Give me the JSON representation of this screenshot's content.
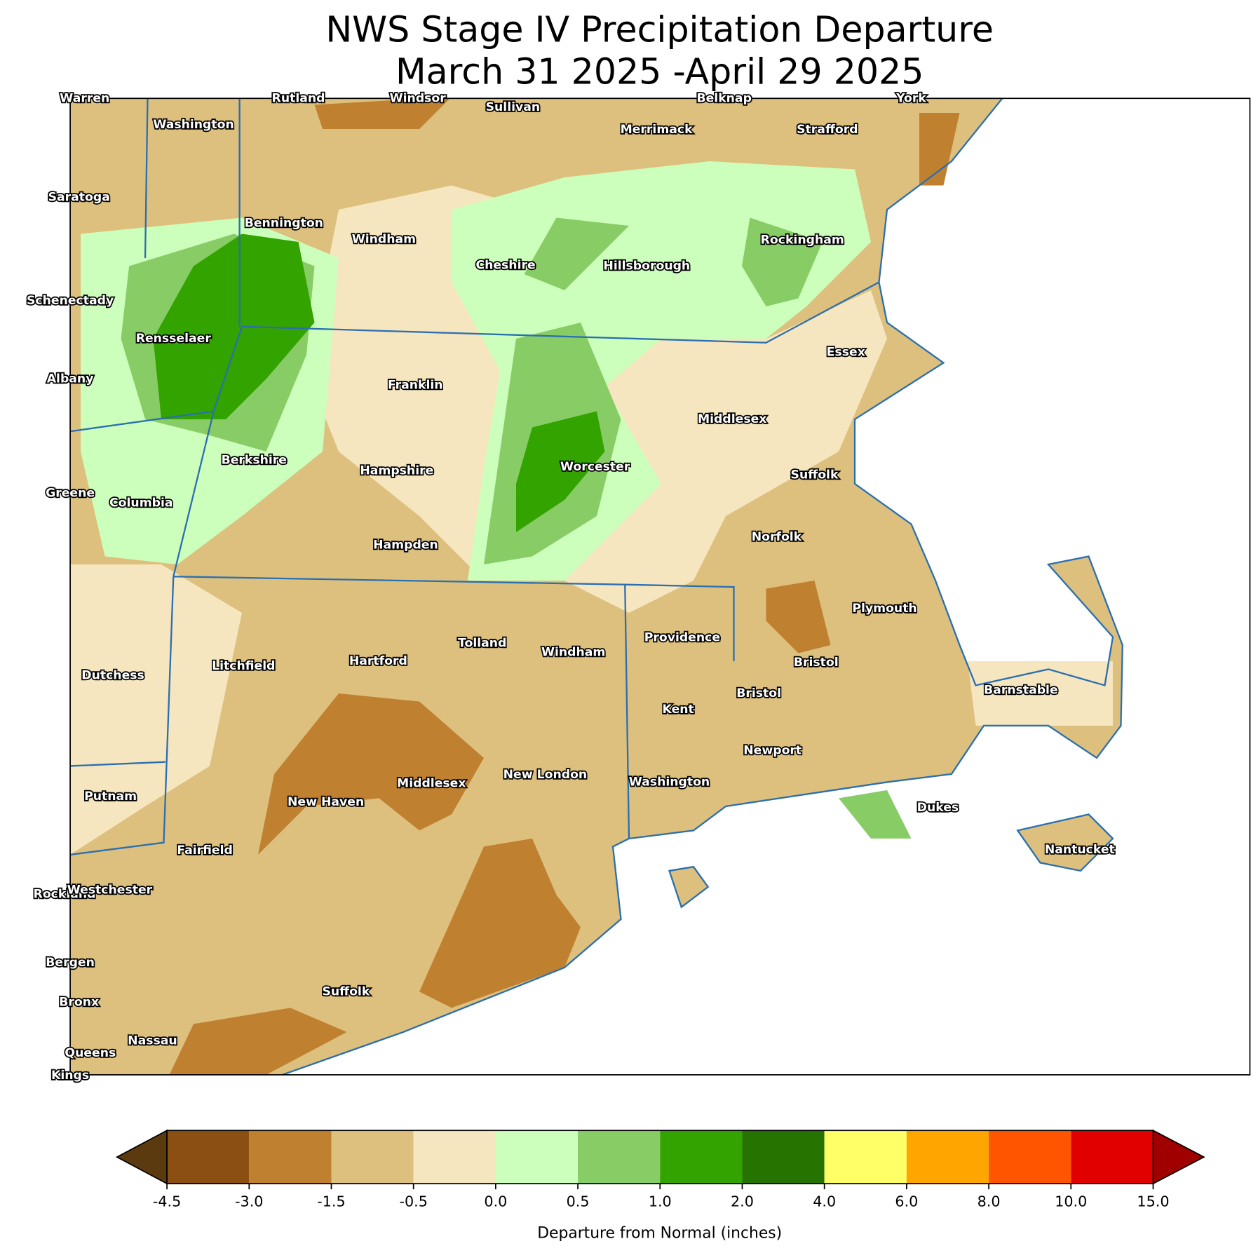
{
  "title": [
    "NWS Stage IV Precipitation Departure",
    "March 31 2025 -April 29 2025"
  ],
  "map": {
    "labels": [
      "Warren",
      "Rutland",
      "Windsor",
      "Sullivan",
      "Belknap",
      "York",
      "Washington",
      "Merrimack",
      "Strafford",
      "Saratoga",
      "Bennington",
      "Windham",
      "Rockingham",
      "Cheshire",
      "Hillsborough",
      "Schenectady",
      "Rensselaer",
      "Essex",
      "Albany",
      "Franklin",
      "Middlesex",
      "Berkshire",
      "Worcester",
      "Hampshire",
      "Suffolk",
      "Greene",
      "Columbia",
      "Hampden",
      "Norfolk",
      "Plymouth",
      "Providence",
      "Tolland",
      "Windham",
      "Dutchess",
      "Litchfield",
      "Hartford",
      "Bristol",
      "Bristol",
      "Barnstable",
      "Kent",
      "Newport",
      "New London",
      "Washington",
      "Middlesex",
      "New Haven",
      "Putnam",
      "Dukes",
      "Fairfield",
      "Nantucket",
      "Rockland",
      "Westchester",
      "Bergen",
      "Suffolk",
      "Bronx",
      "Nassau",
      "Queens",
      "Kings"
    ]
  },
  "colorbar": {
    "label": "Departure from Normal (inches)",
    "ticks": [
      -4.5,
      {
        "value": -3,
        "label": "-3.0"
      },
      -1.5,
      -0.5,
      {
        "value": 0,
        "label": "0.0"
      },
      0.5,
      {
        "value": 1,
        "label": "1.0"
      },
      {
        "value": 2,
        "label": "2.0"
      },
      {
        "value": 4,
        "label": "4.0"
      },
      {
        "value": 6,
        "label": "6.0"
      },
      {
        "value": 8,
        "label": "8.0"
      },
      {
        "value": 10,
        "label": "10.0"
      },
      {
        "value": 15,
        "label": "15.0"
      }
    ],
    "colors": [
      "#8b4f12",
      "#bf8030",
      "#dec07e",
      "#f5e6c0",
      "#ccffbb",
      "#88cc66",
      "#33a300",
      "#267300",
      "#ffff66",
      "#ffa500",
      "#ff5500",
      "#e00000"
    ],
    "under_color": "#5c3a10",
    "over_color": "#a00000"
  }
}
